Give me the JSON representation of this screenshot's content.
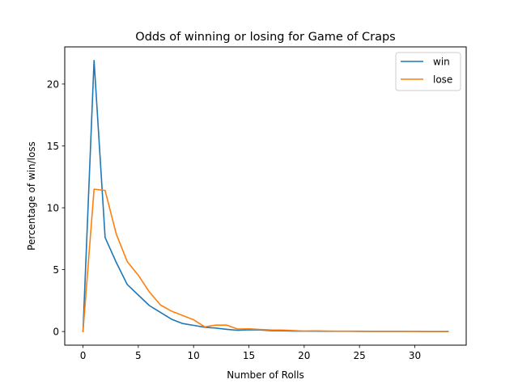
{
  "chart_data": {
    "type": "line",
    "title": "Odds of winning or losing for Game of Craps",
    "xlabel": "Number of Rolls",
    "ylabel": "Percentage of win/loss",
    "xlim": [
      -1.65,
      34.65
    ],
    "ylim": [
      -1.1,
      23.0
    ],
    "xticks": [
      0,
      5,
      10,
      15,
      20,
      25,
      30
    ],
    "yticks": [
      0,
      5,
      10,
      15,
      20
    ],
    "grid": false,
    "legend_position": "top-right",
    "x": [
      0,
      1,
      2,
      3,
      4,
      5,
      6,
      7,
      8,
      9,
      10,
      11,
      12,
      13,
      14,
      15,
      16,
      17,
      18,
      19,
      20,
      21,
      22,
      23,
      24,
      25,
      26,
      27,
      28,
      29,
      30,
      31,
      32,
      33
    ],
    "series": [
      {
        "name": "win",
        "color": "#1f77b4",
        "values": [
          0,
          21.9,
          7.6,
          5.6,
          3.8,
          2.95,
          2.1,
          1.55,
          1.0,
          0.65,
          0.5,
          0.35,
          0.28,
          0.18,
          0.1,
          0.14,
          0.13,
          0.07,
          0.06,
          0.04,
          0.03,
          0.03,
          0.02,
          0.02,
          0.02,
          0.01,
          0.01,
          0.01,
          0.01,
          0.01,
          0.01,
          0.0,
          0.0,
          0.0
        ]
      },
      {
        "name": "lose",
        "color": "#ff7f0e",
        "values": [
          0,
          11.5,
          11.4,
          7.9,
          5.65,
          4.55,
          3.2,
          2.15,
          1.65,
          1.3,
          0.95,
          0.38,
          0.52,
          0.52,
          0.2,
          0.22,
          0.17,
          0.13,
          0.12,
          0.08,
          0.04,
          0.06,
          0.04,
          0.03,
          0.03,
          0.03,
          0.02,
          0.02,
          0.02,
          0.02,
          0.01,
          0.01,
          0.01,
          0.01
        ]
      }
    ]
  }
}
